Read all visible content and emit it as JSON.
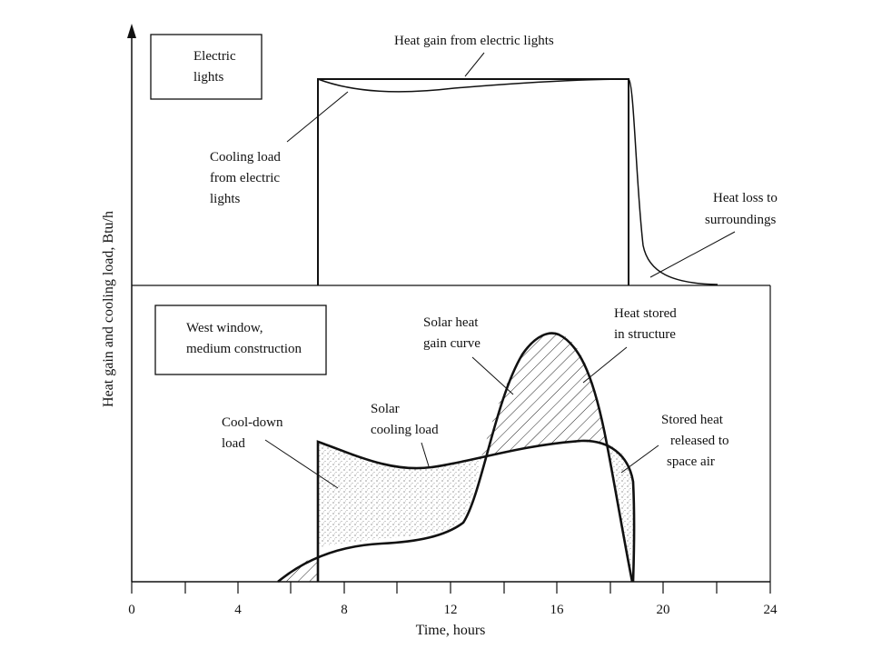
{
  "figure": {
    "y_axis_title": "Heat gain and cooling load, Btu/h",
    "x_axis_title": "Time, hours",
    "x_ticks": [
      "0",
      "4",
      "8",
      "12",
      "16",
      "20",
      "24"
    ],
    "top_panel": {
      "box_label": [
        "Electric",
        "lights"
      ],
      "heat_gain_label": "Heat gain from electric lights",
      "cooling_load_label": [
        "Cooling load",
        "from electric",
        "lights"
      ],
      "heat_loss_label": [
        "Heat loss to",
        "surroundings"
      ]
    },
    "bottom_panel": {
      "box_label": [
        "West window,",
        "medium construction"
      ],
      "cool_down_label": [
        "Cool-down",
        "load"
      ],
      "solar_cooling_label": [
        "Solar",
        "cooling load"
      ],
      "solar_gain_label": [
        "Solar heat",
        "gain curve"
      ],
      "heat_stored_label": [
        "Heat stored",
        "in structure"
      ],
      "stored_heat_label": [
        "Stored heat",
        "released to",
        "space air"
      ]
    }
  },
  "chart_data": {
    "type": "line",
    "x_range": [
      0,
      24
    ],
    "xlabel": "Time, hours",
    "ylabel": "Heat gain and cooling load, Btu/h",
    "x_ticks": [
      0,
      4,
      8,
      12,
      16,
      20,
      24
    ]
  }
}
